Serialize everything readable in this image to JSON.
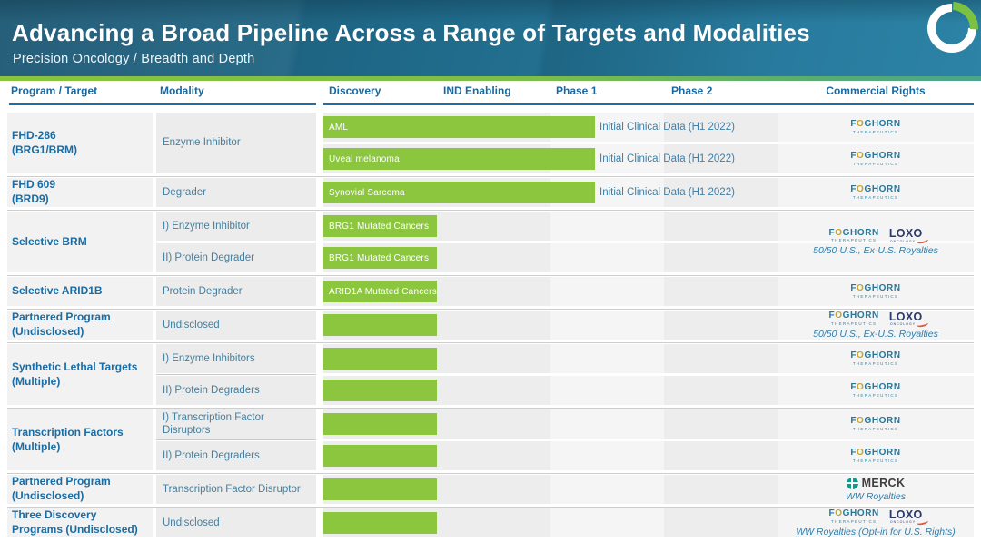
{
  "slide": {
    "title": "Advancing a Broad Pipeline Across a Range of Targets and Modalities",
    "subtitle": "Precision Oncology / Breadth and Depth",
    "brand_icon": "foghorn-ring-logo",
    "colors": {
      "band_teal": "#1f6887",
      "accent_green": "#7cc242",
      "bar_green": "#8cc63f",
      "header_blue": "#19689e",
      "annotation_blue": "#3a80ab"
    }
  },
  "columns": [
    "Program / Target",
    "Modality",
    "Discovery",
    "IND Enabling",
    "Phase 1",
    "Phase 2",
    "Commercial Rights"
  ],
  "logos": {
    "foghorn": {
      "word": "FOGHORN",
      "sub": "THERAPEUTICS"
    },
    "loxo": {
      "word": "LOXO",
      "sub": "ONCOLOGY"
    },
    "merck": {
      "word": "MERCK"
    }
  },
  "pipeline": {
    "groups": [
      {
        "program": "FHD-286\n(BRG1/BRM)",
        "modalities": [
          {
            "label": "Enzyme Inhibitor",
            "span": 2
          }
        ],
        "rows": [
          {
            "bar_label": "AML",
            "extent": "phase1",
            "annotation": "Initial Clinical Data (H1 2022)"
          },
          {
            "bar_label": "Uveal melanoma",
            "extent": "phase1",
            "annotation": "Initial Clinical Data (H1 2022)"
          }
        ],
        "rights": [
          {
            "span": 1,
            "logos": [
              "foghorn"
            ],
            "caption": ""
          },
          {
            "span": 1,
            "logos": [
              "foghorn"
            ],
            "caption": ""
          }
        ]
      },
      {
        "program": "FHD 609\n(BRD9)",
        "modalities": [
          {
            "label": "Degrader",
            "span": 1
          }
        ],
        "rows": [
          {
            "bar_label": "Synovial Sarcoma",
            "extent": "phase1",
            "annotation": "Initial Clinical Data (H1 2022)"
          }
        ],
        "rights": [
          {
            "span": 1,
            "logos": [
              "foghorn"
            ],
            "caption": ""
          }
        ]
      },
      {
        "program": "Selective BRM",
        "modalities": [
          {
            "label": "I) Enzyme Inhibitor",
            "span": 1
          },
          {
            "label": "II) Protein Degrader",
            "span": 1
          }
        ],
        "rows": [
          {
            "bar_label": "BRG1 Mutated Cancers",
            "extent": "discovery",
            "annotation": ""
          },
          {
            "bar_label": "BRG1 Mutated Cancers",
            "extent": "discovery",
            "annotation": ""
          }
        ],
        "rights": [
          {
            "span": 2,
            "logos": [
              "foghorn",
              "loxo"
            ],
            "caption": "50/50 U.S., Ex-U.S. Royalties"
          }
        ]
      },
      {
        "program": "Selective ARID1B",
        "modalities": [
          {
            "label": "Protein Degrader",
            "span": 1
          }
        ],
        "rows": [
          {
            "bar_label": "ARID1A Mutated Cancers",
            "extent": "discovery",
            "annotation": ""
          }
        ],
        "rights": [
          {
            "span": 1,
            "logos": [
              "foghorn"
            ],
            "caption": ""
          }
        ]
      },
      {
        "program": "Partnered Program\n(Undisclosed)",
        "modalities": [
          {
            "label": "Undisclosed",
            "span": 1
          }
        ],
        "rows": [
          {
            "bar_label": "",
            "extent": "discovery",
            "annotation": ""
          }
        ],
        "rights": [
          {
            "span": 1,
            "logos": [
              "foghorn",
              "loxo"
            ],
            "caption": "50/50 U.S., Ex-U.S. Royalties"
          }
        ]
      },
      {
        "program": "Synthetic Lethal Targets\n(Multiple)",
        "modalities": [
          {
            "label": "I) Enzyme Inhibitors",
            "span": 1
          },
          {
            "label": "II) Protein Degraders",
            "span": 1
          }
        ],
        "rows": [
          {
            "bar_label": "",
            "extent": "discovery",
            "annotation": ""
          },
          {
            "bar_label": "",
            "extent": "discovery",
            "annotation": ""
          }
        ],
        "rights": [
          {
            "span": 1,
            "logos": [
              "foghorn"
            ],
            "caption": ""
          },
          {
            "span": 1,
            "logos": [
              "foghorn"
            ],
            "caption": ""
          }
        ]
      },
      {
        "program": "Transcription Factors\n(Multiple)",
        "modalities": [
          {
            "label": "I) Transcription Factor\nDisruptors",
            "span": 1
          },
          {
            "label": "II) Protein Degraders",
            "span": 1
          }
        ],
        "rows": [
          {
            "bar_label": "",
            "extent": "discovery",
            "annotation": ""
          },
          {
            "bar_label": "",
            "extent": "discovery",
            "annotation": ""
          }
        ],
        "rights": [
          {
            "span": 1,
            "logos": [
              "foghorn"
            ],
            "caption": ""
          },
          {
            "span": 1,
            "logos": [
              "foghorn"
            ],
            "caption": ""
          }
        ]
      },
      {
        "program": "Partnered Program\n(Undisclosed)",
        "modalities": [
          {
            "label": "Transcription Factor Disruptor",
            "span": 1
          }
        ],
        "rows": [
          {
            "bar_label": "",
            "extent": "discovery",
            "annotation": ""
          }
        ],
        "rights": [
          {
            "span": 1,
            "logos": [
              "merck"
            ],
            "caption": "WW Royalties"
          }
        ]
      },
      {
        "program": "Three Discovery\nPrograms (Undisclosed)",
        "modalities": [
          {
            "label": "Undisclosed",
            "span": 1
          }
        ],
        "rows": [
          {
            "bar_label": "",
            "extent": "discovery",
            "annotation": ""
          }
        ],
        "rights": [
          {
            "span": 1,
            "logos": [
              "foghorn",
              "loxo"
            ],
            "caption": "WW Royalties (Opt-in for U.S. Rights)"
          }
        ]
      }
    ]
  }
}
